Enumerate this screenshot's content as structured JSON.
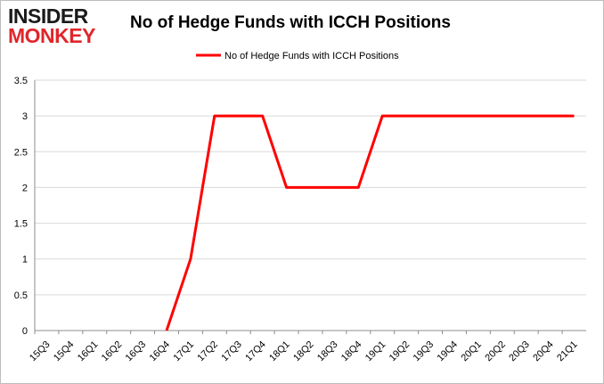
{
  "logo": {
    "line1": "INSIDER",
    "line2": "MONKEY"
  },
  "colors": {
    "series": "#ff0000",
    "grid": "#d9d9d9",
    "axis": "#8c8c8c",
    "logo_red": "#e0262b"
  },
  "chart_data": {
    "type": "line",
    "title": "No of Hedge Funds with ICCH Positions",
    "xlabel": "",
    "ylabel": "",
    "ylim": [
      0,
      3.5
    ],
    "yticks": [
      0,
      0.5,
      1,
      1.5,
      2,
      2.5,
      3,
      3.5
    ],
    "ytick_labels": [
      "0",
      "0.5",
      "1",
      "1.5",
      "2",
      "2.5",
      "3",
      "3.5"
    ],
    "grid": true,
    "legend": "top-center",
    "categories": [
      "15Q3",
      "15Q4",
      "16Q1",
      "16Q2",
      "16Q3",
      "16Q4",
      "17Q1",
      "17Q2",
      "17Q3",
      "17Q4",
      "18Q1",
      "18Q2",
      "18Q3",
      "18Q4",
      "19Q1",
      "19Q2",
      "19Q3",
      "19Q4",
      "20Q1",
      "20Q2",
      "20Q3",
      "20Q4",
      "21Q1"
    ],
    "series": [
      {
        "name": "No of Hedge Funds with ICCH Positions",
        "values": [
          null,
          null,
          null,
          null,
          null,
          0,
          1,
          3,
          3,
          3,
          2,
          2,
          2,
          2,
          3,
          3,
          3,
          3,
          3,
          3,
          3,
          3,
          3
        ]
      }
    ]
  }
}
